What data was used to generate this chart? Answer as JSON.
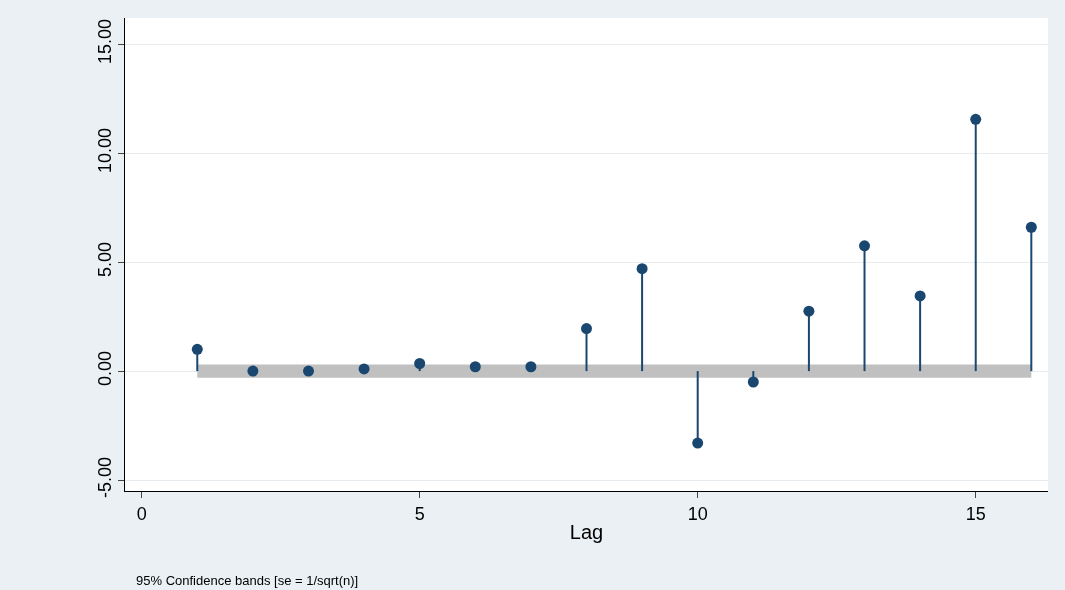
{
  "chart_data": {
    "type": "lollipop",
    "xlabel": "Lag",
    "annotations": [
      "95% Confidence bands [se = 1/sqrt(n)]"
    ],
    "x": [
      1,
      2,
      3,
      4,
      5,
      6,
      7,
      8,
      9,
      10,
      11,
      12,
      13,
      14,
      15,
      16
    ],
    "series": [
      {
        "color": "#1a476f",
        "values": [
          1.0,
          0,
          0,
          0.1,
          0.35,
          0.2,
          0.2,
          1.95,
          4.7,
          -3.3,
          -0.5,
          2.75,
          5.75,
          3.45,
          11.55,
          6.6
        ]
      }
    ],
    "marker": "circle",
    "xlim": [
      -0.3,
      16.3
    ],
    "xticks": [
      0,
      5,
      10,
      15
    ],
    "ylim": [
      -5.5,
      16.2
    ],
    "yticks": [
      {
        "value": -5,
        "label": "-5.00"
      },
      {
        "value": 0,
        "label": "0.00"
      },
      {
        "value": 5,
        "label": "5.00"
      },
      {
        "value": 10,
        "label": "10.00"
      },
      {
        "value": 15,
        "label": "15.00"
      }
    ],
    "bands": [
      {
        "axis": "y",
        "from": -0.3,
        "to": 0.3,
        "color": "#c0c0c0"
      }
    ],
    "grid": "y"
  }
}
